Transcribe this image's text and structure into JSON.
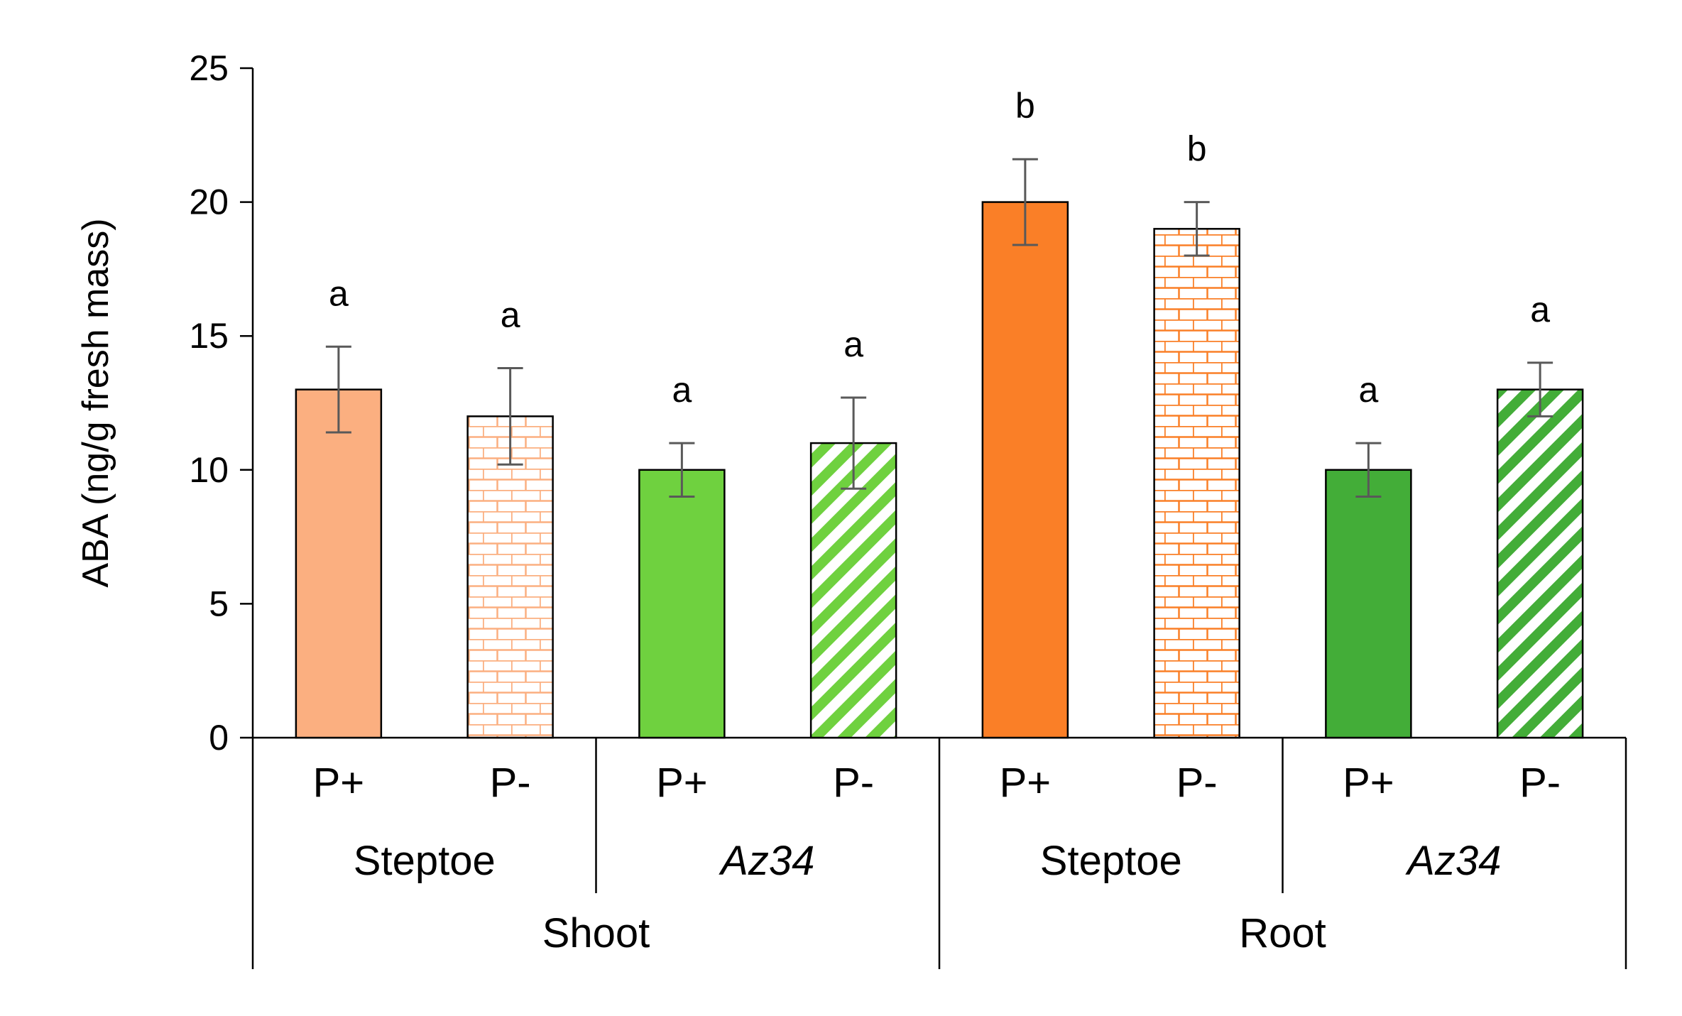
{
  "chart_data": {
    "type": "bar",
    "ylabel": "ABA (ng/g fresh mass)",
    "ylim": [
      0,
      25
    ],
    "yticks": [
      0,
      5,
      10,
      15,
      20,
      25
    ],
    "grid": false,
    "legend": "none",
    "bars": [
      {
        "treatment": "P+",
        "genotype": "Steptoe",
        "tissue": "Shoot",
        "value": 13,
        "error": 1.6,
        "letter": "a",
        "color": "#FBAF80",
        "pattern": "solid"
      },
      {
        "treatment": "P-",
        "genotype": "Steptoe",
        "tissue": "Shoot",
        "value": 12,
        "error": 1.8,
        "letter": "a",
        "color": "#FBAF80",
        "pattern": "brick"
      },
      {
        "treatment": "P+",
        "genotype": "Az34",
        "tissue": "Shoot",
        "value": 10,
        "error": 1.0,
        "letter": "a",
        "color": "#6FD13F",
        "pattern": "solid"
      },
      {
        "treatment": "P-",
        "genotype": "Az34",
        "tissue": "Shoot",
        "value": 11,
        "error": 1.7,
        "letter": "a",
        "color": "#6FD13F",
        "pattern": "diagonal"
      },
      {
        "treatment": "P+",
        "genotype": "Steptoe",
        "tissue": "Root",
        "value": 20,
        "error": 1.6,
        "letter": "b",
        "color": "#FA7F27",
        "pattern": "solid"
      },
      {
        "treatment": "P-",
        "genotype": "Steptoe",
        "tissue": "Root",
        "value": 19,
        "error": 1.0,
        "letter": "b",
        "color": "#FA7F27",
        "pattern": "brick"
      },
      {
        "treatment": "P+",
        "genotype": "Az34",
        "tissue": "Root",
        "value": 10,
        "error": 1.0,
        "letter": "a",
        "color": "#43AD38",
        "pattern": "solid"
      },
      {
        "treatment": "P-",
        "genotype": "Az34",
        "tissue": "Root",
        "value": 13,
        "error": 1.0,
        "letter": "a",
        "color": "#43AD38",
        "pattern": "diagonal"
      }
    ],
    "genotype_groups": [
      {
        "label": "Steptoe",
        "italic": false
      },
      {
        "label": "Az34",
        "italic": true
      },
      {
        "label": "Steptoe",
        "italic": false
      },
      {
        "label": "Az34",
        "italic": true
      }
    ],
    "tissue_groups": [
      {
        "label": "Shoot"
      },
      {
        "label": "Root"
      }
    ]
  }
}
